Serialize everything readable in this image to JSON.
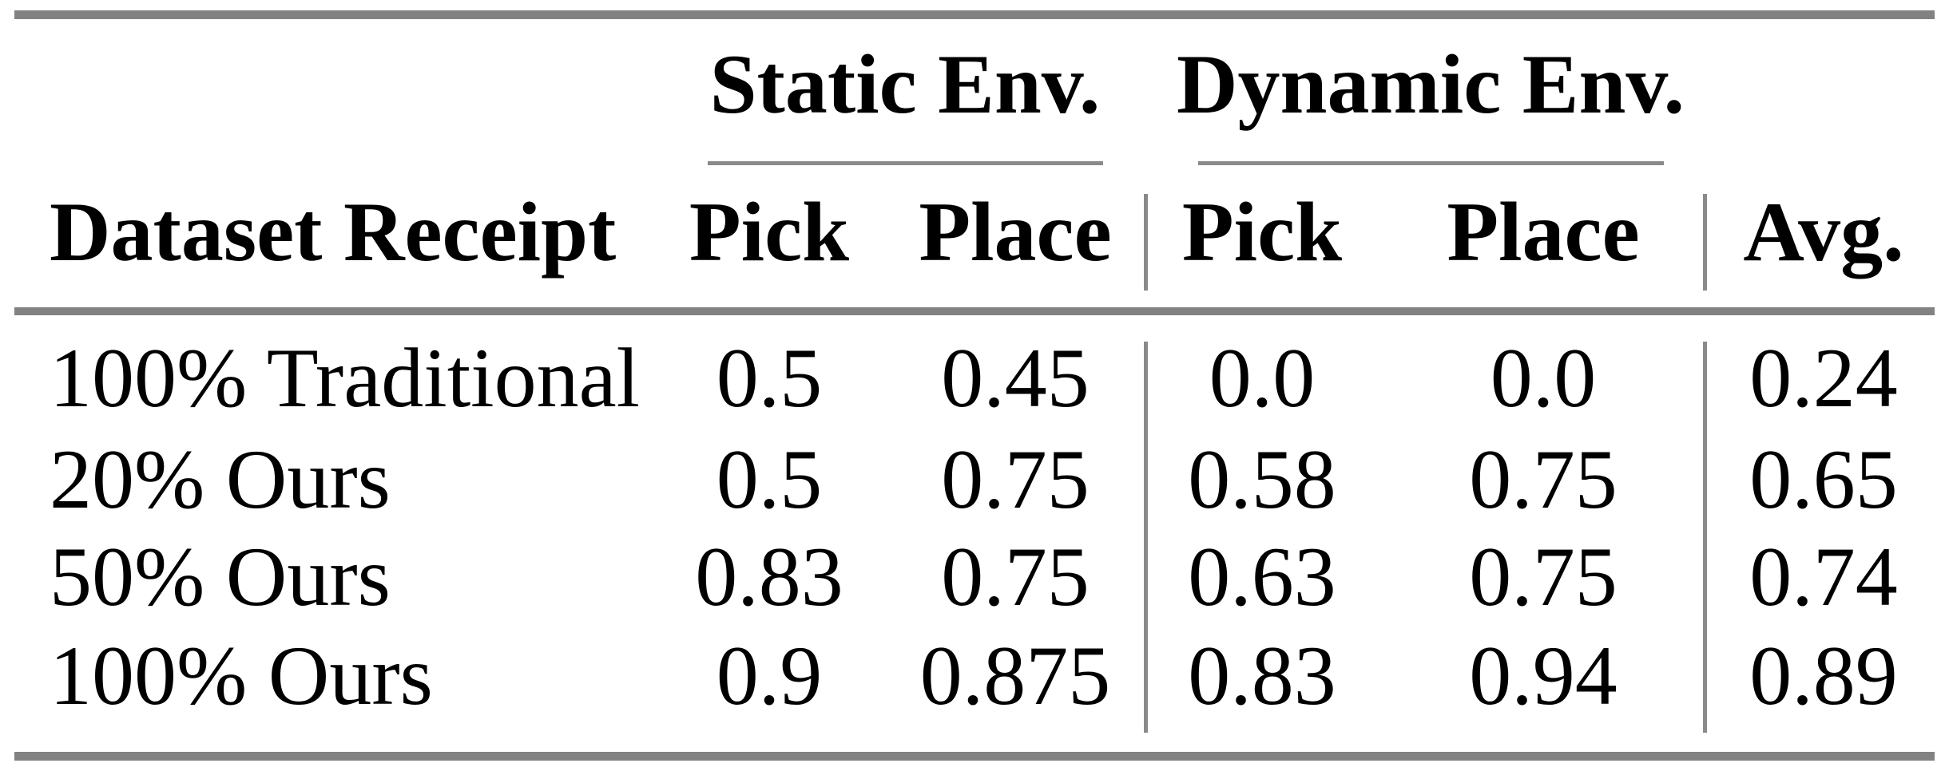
{
  "table": {
    "groups": {
      "static": "Static Env.",
      "dynamic": "Dynamic Env."
    },
    "header": {
      "label": "Dataset Receipt",
      "static_pick": "Pick",
      "static_place": "Place",
      "dynamic_pick": "Pick",
      "dynamic_place": "Place",
      "avg": "Avg."
    },
    "rows": [
      {
        "label": "100% Traditional",
        "static_pick": "0.5",
        "static_place": "0.45",
        "dynamic_pick": "0.0",
        "dynamic_place": "0.0",
        "avg": "0.24"
      },
      {
        "label": "20% Ours",
        "static_pick": "0.5",
        "static_place": "0.75",
        "dynamic_pick": "0.58",
        "dynamic_place": "0.75",
        "avg": "0.65"
      },
      {
        "label": "50% Ours",
        "static_pick": "0.83",
        "static_place": "0.75",
        "dynamic_pick": "0.63",
        "dynamic_place": "0.75",
        "avg": "0.74"
      },
      {
        "label": "100% Ours",
        "static_pick": "0.9",
        "static_place": "0.875",
        "dynamic_pick": "0.83",
        "dynamic_place": "0.94",
        "avg": "0.89"
      }
    ],
    "colors": {
      "rule_thick": "#828282",
      "rule_thin": "#8a8a8a",
      "text": "#000000"
    }
  }
}
